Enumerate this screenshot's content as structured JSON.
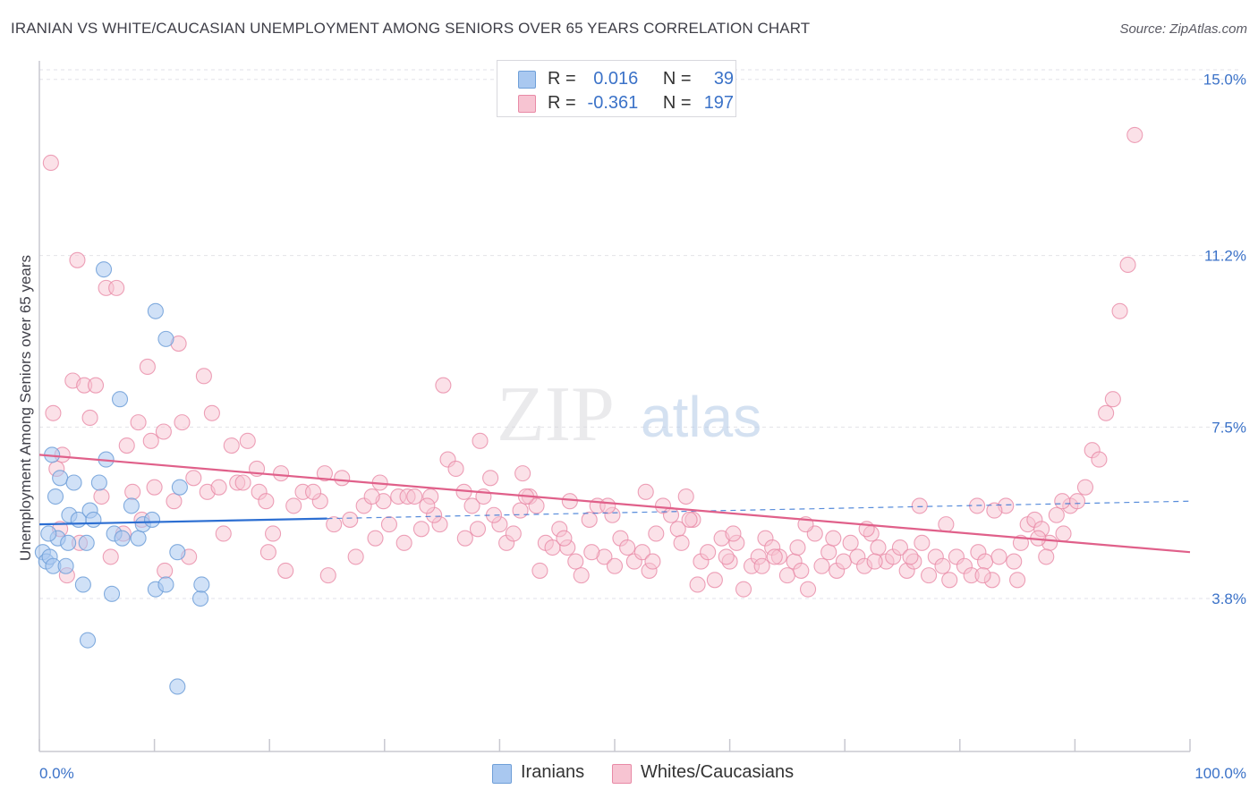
{
  "title": "IRANIAN VS WHITE/CAUCASIAN UNEMPLOYMENT AMONG SENIORS OVER 65 YEARS CORRELATION CHART",
  "source": "Source: ZipAtlas.com",
  "watermark": {
    "zip": "ZIP",
    "atlas": "atlas"
  },
  "legend": {
    "rows": [
      {
        "r_label": "R =",
        "r_value": "0.016",
        "n_label": "N =",
        "n_value": "39",
        "color": "#a9c8f0",
        "border": "#6f9fd8"
      },
      {
        "r_label": "R =",
        "r_value": "-0.361",
        "n_label": "N =",
        "n_value": "197",
        "color": "#f7c4d2",
        "border": "#e88aa6"
      }
    ]
  },
  "bottom_legend": [
    {
      "label": "Iranians",
      "color": "#a9c8f0",
      "border": "#6f9fd8"
    },
    {
      "label": "Whites/Caucasians",
      "color": "#f7c4d2",
      "border": "#e88aa6"
    }
  ],
  "chart_data": {
    "type": "scatter",
    "title": "IRANIAN VS WHITE/CAUCASIAN UNEMPLOYMENT AMONG SENIORS OVER 65 YEARS CORRELATION CHART",
    "xlabel": "",
    "ylabel": "Unemployment Among Seniors over 65 years",
    "x_tick_labels": [
      "0.0%",
      "100.0%"
    ],
    "y_tick_labels": [
      "3.8%",
      "7.5%",
      "11.2%",
      "15.0%"
    ],
    "y_ticks": [
      3.8,
      7.5,
      11.2,
      15.0
    ],
    "xlim": [
      0,
      100
    ],
    "ylim": [
      0.5,
      15.4
    ],
    "grid": true,
    "colors": {
      "iranians": "#6f9fd8",
      "iranians_fill": "#a9c8f0",
      "whites": "#e88aa6",
      "whites_fill": "#f7c4d2",
      "iranians_line": "#2d6fd2",
      "whites_line": "#e0608a"
    },
    "series": [
      {
        "name": "Iranians",
        "trend": {
          "x0": 0,
          "y0": 5.4,
          "x1": 100,
          "y1": 5.9,
          "solid_until": 25
        },
        "points": [
          [
            0.3,
            4.8
          ],
          [
            0.6,
            4.6
          ],
          [
            0.9,
            4.7
          ],
          [
            1.2,
            4.5
          ],
          [
            1.6,
            5.1
          ],
          [
            1.4,
            6.0
          ],
          [
            1.8,
            6.4
          ],
          [
            1.1,
            6.9
          ],
          [
            2.3,
            4.5
          ],
          [
            2.5,
            5.0
          ],
          [
            2.6,
            5.6
          ],
          [
            3.0,
            6.3
          ],
          [
            3.4,
            5.5
          ],
          [
            3.8,
            4.1
          ],
          [
            4.1,
            5.0
          ],
          [
            4.4,
            5.7
          ],
          [
            4.7,
            5.5
          ],
          [
            5.2,
            6.3
          ],
          [
            5.8,
            6.8
          ],
          [
            6.5,
            5.2
          ],
          [
            7.0,
            8.1
          ],
          [
            7.2,
            5.1
          ],
          [
            8.0,
            5.8
          ],
          [
            8.6,
            5.1
          ],
          [
            9.0,
            5.4
          ],
          [
            9.8,
            5.5
          ],
          [
            10.1,
            4.0
          ],
          [
            11.0,
            9.4
          ],
          [
            11.0,
            4.1
          ],
          [
            6.3,
            3.9
          ],
          [
            12.0,
            4.8
          ],
          [
            12.2,
            6.2
          ],
          [
            14.0,
            3.8
          ],
          [
            10.1,
            10.0
          ],
          [
            5.6,
            10.9
          ],
          [
            4.2,
            2.9
          ],
          [
            12.0,
            1.9
          ],
          [
            14.1,
            4.1
          ],
          [
            0.8,
            5.2
          ]
        ]
      },
      {
        "name": "Whites/Caucasians",
        "trend": {
          "x0": 0,
          "y0": 6.9,
          "x1": 100,
          "y1": 4.8
        },
        "points": [
          [
            1.0,
            13.2
          ],
          [
            1.2,
            7.8
          ],
          [
            2.0,
            6.9
          ],
          [
            2.9,
            8.5
          ],
          [
            3.3,
            11.1
          ],
          [
            3.9,
            8.4
          ],
          [
            4.4,
            7.7
          ],
          [
            5.8,
            10.5
          ],
          [
            6.7,
            10.5
          ],
          [
            4.9,
            8.4
          ],
          [
            7.6,
            7.1
          ],
          [
            8.1,
            6.1
          ],
          [
            8.6,
            7.6
          ],
          [
            9.4,
            8.8
          ],
          [
            10.0,
            6.2
          ],
          [
            10.8,
            7.4
          ],
          [
            12.1,
            9.3
          ],
          [
            12.4,
            7.6
          ],
          [
            13.4,
            6.4
          ],
          [
            14.3,
            8.6
          ],
          [
            15.0,
            7.8
          ],
          [
            16.7,
            7.1
          ],
          [
            17.2,
            6.3
          ],
          [
            17.7,
            6.3
          ],
          [
            18.9,
            6.6
          ],
          [
            19.1,
            6.1
          ],
          [
            19.7,
            5.9
          ],
          [
            21.0,
            6.5
          ],
          [
            22.1,
            5.8
          ],
          [
            22.9,
            6.1
          ],
          [
            24.4,
            5.9
          ],
          [
            25.6,
            5.4
          ],
          [
            26.3,
            6.4
          ],
          [
            27.0,
            5.5
          ],
          [
            28.2,
            5.8
          ],
          [
            29.2,
            5.1
          ],
          [
            29.9,
            5.9
          ],
          [
            30.4,
            5.4
          ],
          [
            31.2,
            6.0
          ],
          [
            32.0,
            6.0
          ],
          [
            32.6,
            6.0
          ],
          [
            33.2,
            5.3
          ],
          [
            34.0,
            6.0
          ],
          [
            34.8,
            5.4
          ],
          [
            35.1,
            8.4
          ],
          [
            35.5,
            6.8
          ],
          [
            36.2,
            6.6
          ],
          [
            36.9,
            6.1
          ],
          [
            37.6,
            5.8
          ],
          [
            38.1,
            5.3
          ],
          [
            38.6,
            6.0
          ],
          [
            39.2,
            6.4
          ],
          [
            40.0,
            5.4
          ],
          [
            40.6,
            5.0
          ],
          [
            41.2,
            5.2
          ],
          [
            42.0,
            6.5
          ],
          [
            42.6,
            6.0
          ],
          [
            43.2,
            5.8
          ],
          [
            44.0,
            5.0
          ],
          [
            44.6,
            4.9
          ],
          [
            45.2,
            5.3
          ],
          [
            45.9,
            4.9
          ],
          [
            46.6,
            4.6
          ],
          [
            47.1,
            4.3
          ],
          [
            47.8,
            5.5
          ],
          [
            48.5,
            5.8
          ],
          [
            49.1,
            4.7
          ],
          [
            49.8,
            5.6
          ],
          [
            50.5,
            5.1
          ],
          [
            51.1,
            4.9
          ],
          [
            51.7,
            4.6
          ],
          [
            52.4,
            4.8
          ],
          [
            53.0,
            4.4
          ],
          [
            53.6,
            5.2
          ],
          [
            54.2,
            5.8
          ],
          [
            54.9,
            5.6
          ],
          [
            55.5,
            5.3
          ],
          [
            56.2,
            6.0
          ],
          [
            56.8,
            5.5
          ],
          [
            57.5,
            4.6
          ],
          [
            58.1,
            4.8
          ],
          [
            58.7,
            4.2
          ],
          [
            59.3,
            5.1
          ],
          [
            60.0,
            4.6
          ],
          [
            60.6,
            5.0
          ],
          [
            61.2,
            4.0
          ],
          [
            61.9,
            4.5
          ],
          [
            62.5,
            4.7
          ],
          [
            63.1,
            5.1
          ],
          [
            63.7,
            4.9
          ],
          [
            64.3,
            4.7
          ],
          [
            65.0,
            4.3
          ],
          [
            65.6,
            4.6
          ],
          [
            66.2,
            4.4
          ],
          [
            66.8,
            4.0
          ],
          [
            67.4,
            5.2
          ],
          [
            68.0,
            4.5
          ],
          [
            68.6,
            4.8
          ],
          [
            69.3,
            4.4
          ],
          [
            69.9,
            4.6
          ],
          [
            70.5,
            5.0
          ],
          [
            71.1,
            4.7
          ],
          [
            71.7,
            4.5
          ],
          [
            72.3,
            5.2
          ],
          [
            72.9,
            4.9
          ],
          [
            73.6,
            4.6
          ],
          [
            74.2,
            4.7
          ],
          [
            74.8,
            4.9
          ],
          [
            75.4,
            4.4
          ],
          [
            76.0,
            4.6
          ],
          [
            76.7,
            5.0
          ],
          [
            77.3,
            4.3
          ],
          [
            77.9,
            4.7
          ],
          [
            78.5,
            4.5
          ],
          [
            79.1,
            4.2
          ],
          [
            79.7,
            4.7
          ],
          [
            80.4,
            4.5
          ],
          [
            81.0,
            4.3
          ],
          [
            81.6,
            4.8
          ],
          [
            82.2,
            4.6
          ],
          [
            82.8,
            4.2
          ],
          [
            83.4,
            4.7
          ],
          [
            84.0,
            5.8
          ],
          [
            84.7,
            4.6
          ],
          [
            85.3,
            5.0
          ],
          [
            85.9,
            5.4
          ],
          [
            86.5,
            5.5
          ],
          [
            87.1,
            5.3
          ],
          [
            87.8,
            5.0
          ],
          [
            88.4,
            5.6
          ],
          [
            89.0,
            5.2
          ],
          [
            89.6,
            5.8
          ],
          [
            90.2,
            5.9
          ],
          [
            90.9,
            6.2
          ],
          [
            91.5,
            7.0
          ],
          [
            92.1,
            6.8
          ],
          [
            92.7,
            7.8
          ],
          [
            93.3,
            8.1
          ],
          [
            93.9,
            10.0
          ],
          [
            94.6,
            11.0
          ],
          [
            95.2,
            13.8
          ],
          [
            81.5,
            5.8
          ],
          [
            83.0,
            5.7
          ],
          [
            86.8,
            5.1
          ],
          [
            88.9,
            5.9
          ],
          [
            76.5,
            5.8
          ],
          [
            71.9,
            5.3
          ],
          [
            66.6,
            5.4
          ],
          [
            63.9,
            4.7
          ],
          [
            60.3,
            5.2
          ],
          [
            57.2,
            4.1
          ],
          [
            55.8,
            5.0
          ],
          [
            52.7,
            6.1
          ],
          [
            50.0,
            4.5
          ],
          [
            48.0,
            4.8
          ],
          [
            46.1,
            5.9
          ],
          [
            43.5,
            4.4
          ],
          [
            41.8,
            5.7
          ],
          [
            39.5,
            5.6
          ],
          [
            37.0,
            5.1
          ],
          [
            34.3,
            5.6
          ],
          [
            31.7,
            5.0
          ],
          [
            29.6,
            6.3
          ],
          [
            27.5,
            4.7
          ],
          [
            25.1,
            4.3
          ],
          [
            23.8,
            6.1
          ],
          [
            21.4,
            4.4
          ],
          [
            20.3,
            5.2
          ],
          [
            18.1,
            7.2
          ],
          [
            16.0,
            5.2
          ],
          [
            14.6,
            6.1
          ],
          [
            13.0,
            4.7
          ],
          [
            11.7,
            5.9
          ],
          [
            10.9,
            4.4
          ],
          [
            9.7,
            7.2
          ],
          [
            7.3,
            5.2
          ],
          [
            6.2,
            4.7
          ],
          [
            5.4,
            6.0
          ],
          [
            3.5,
            5.0
          ],
          [
            2.4,
            4.3
          ],
          [
            1.5,
            6.6
          ],
          [
            1.8,
            5.3
          ],
          [
            8.9,
            5.5
          ],
          [
            15.6,
            6.2
          ],
          [
            19.9,
            4.8
          ],
          [
            24.8,
            6.5
          ],
          [
            28.9,
            6.0
          ],
          [
            33.7,
            5.8
          ],
          [
            38.3,
            7.2
          ],
          [
            42.3,
            6.0
          ],
          [
            45.6,
            5.1
          ],
          [
            49.4,
            5.8
          ],
          [
            53.3,
            4.6
          ],
          [
            56.5,
            5.5
          ],
          [
            59.7,
            4.7
          ],
          [
            62.8,
            4.5
          ],
          [
            65.9,
            4.9
          ],
          [
            69.0,
            5.1
          ],
          [
            72.6,
            4.6
          ],
          [
            75.7,
            4.7
          ],
          [
            78.8,
            5.4
          ],
          [
            82.0,
            4.3
          ],
          [
            85.0,
            4.2
          ],
          [
            87.5,
            4.7
          ]
        ]
      }
    ]
  }
}
